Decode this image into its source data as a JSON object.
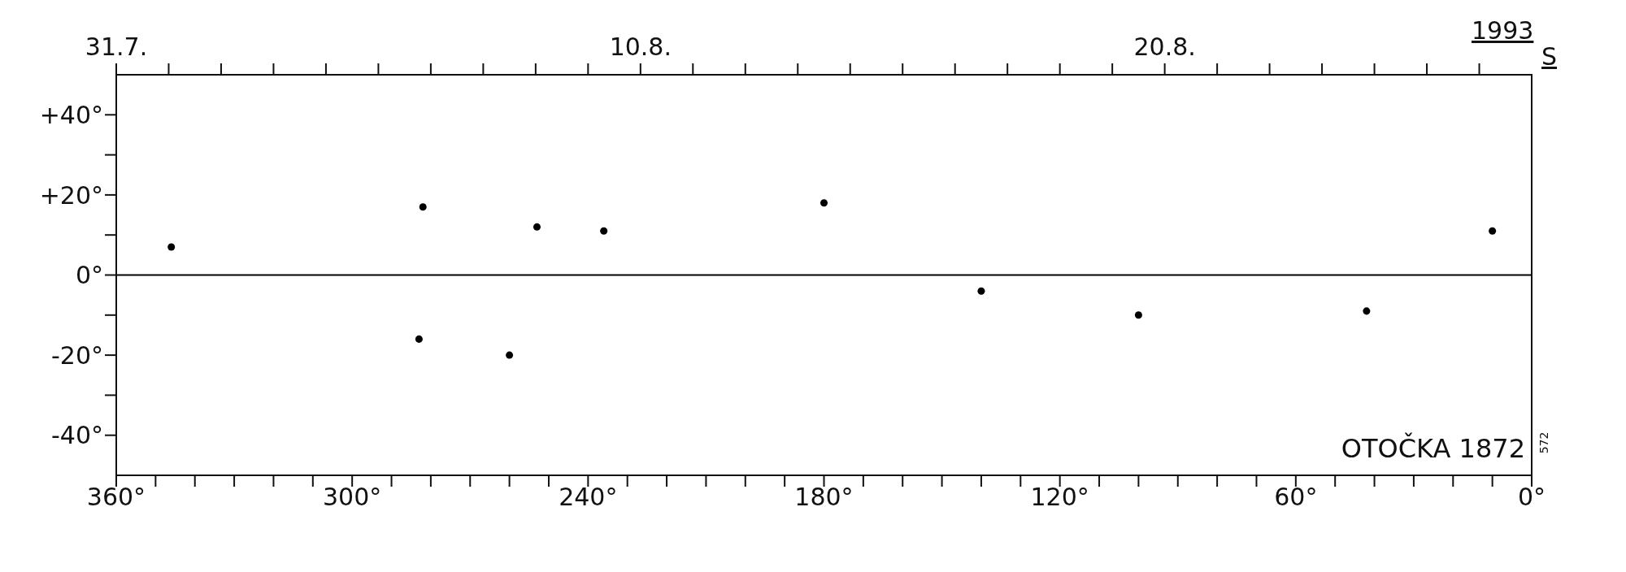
{
  "chart_data": {
    "type": "scatter",
    "x": [
      346,
      253,
      236,
      283,
      282,
      180,
      260,
      140,
      100,
      42,
      10
    ],
    "values": [
      7,
      12,
      11,
      -16,
      17,
      18,
      -20,
      -4,
      -10,
      -9,
      11
    ],
    "color": "#000000",
    "marker": "circle",
    "grid": false,
    "legend": false,
    "xlim": [
      360,
      0
    ],
    "xticks": [
      {
        "value": 360,
        "label": "360°"
      },
      {
        "value": 350,
        "label": null
      },
      {
        "value": 340,
        "label": null
      },
      {
        "value": 330,
        "label": null
      },
      {
        "value": 320,
        "label": null
      },
      {
        "value": 310,
        "label": null
      },
      {
        "value": 300,
        "label": "300°"
      },
      {
        "value": 290,
        "label": null
      },
      {
        "value": 280,
        "label": null
      },
      {
        "value": 270,
        "label": null
      },
      {
        "value": 260,
        "label": null
      },
      {
        "value": 250,
        "label": null
      },
      {
        "value": 240,
        "label": "240°"
      },
      {
        "value": 230,
        "label": null
      },
      {
        "value": 220,
        "label": null
      },
      {
        "value": 210,
        "label": null
      },
      {
        "value": 200,
        "label": null
      },
      {
        "value": 190,
        "label": null
      },
      {
        "value": 180,
        "label": "180°"
      },
      {
        "value": 170,
        "label": null
      },
      {
        "value": 160,
        "label": null
      },
      {
        "value": 150,
        "label": null
      },
      {
        "value": 140,
        "label": null
      },
      {
        "value": 130,
        "label": null
      },
      {
        "value": 120,
        "label": "120°"
      },
      {
        "value": 110,
        "label": null
      },
      {
        "value": 100,
        "label": null
      },
      {
        "value": 90,
        "label": null
      },
      {
        "value": 80,
        "label": null
      },
      {
        "value": 70,
        "label": null
      },
      {
        "value": 60,
        "label": "60°"
      },
      {
        "value": 50,
        "label": null
      },
      {
        "value": 40,
        "label": null
      },
      {
        "value": 30,
        "label": null
      },
      {
        "value": 20,
        "label": null
      },
      {
        "value": 10,
        "label": null
      },
      {
        "value": 0,
        "label": "0°"
      }
    ],
    "ylim": [
      -50,
      50
    ],
    "yticks": [
      {
        "value": -40,
        "label": "-40°"
      },
      {
        "value": -30,
        "label": null
      },
      {
        "value": -20,
        "label": "-20°"
      },
      {
        "value": -10,
        "label": null
      },
      {
        "value": 0,
        "label": "0°"
      },
      {
        "value": 10,
        "label": null
      },
      {
        "value": 20,
        "label": "+20°"
      },
      {
        "value": 30,
        "label": null
      },
      {
        "value": 40,
        "label": "+40°"
      }
    ],
    "x2lim": [
      "1993-07-31",
      "1993-08-27"
    ],
    "x2ticks": [
      {
        "value": "1993-07-31",
        "label": "31.7."
      },
      {
        "value": "1993-08-01",
        "label": null
      },
      {
        "value": "1993-08-02",
        "label": null
      },
      {
        "value": "1993-08-03",
        "label": null
      },
      {
        "value": "1993-08-04",
        "label": null
      },
      {
        "value": "1993-08-05",
        "label": null
      },
      {
        "value": "1993-08-06",
        "label": null
      },
      {
        "value": "1993-08-07",
        "label": null
      },
      {
        "value": "1993-08-08",
        "label": null
      },
      {
        "value": "1993-08-09",
        "label": null
      },
      {
        "value": "1993-08-10",
        "label": "10.8."
      },
      {
        "value": "1993-08-11",
        "label": null
      },
      {
        "value": "1993-08-12",
        "label": null
      },
      {
        "value": "1993-08-13",
        "label": null
      },
      {
        "value": "1993-08-14",
        "label": null
      },
      {
        "value": "1993-08-15",
        "label": null
      },
      {
        "value": "1993-08-16",
        "label": null
      },
      {
        "value": "1993-08-17",
        "label": null
      },
      {
        "value": "1993-08-18",
        "label": null
      },
      {
        "value": "1993-08-19",
        "label": null
      },
      {
        "value": "1993-08-20",
        "label": "20.8."
      },
      {
        "value": "1993-08-21",
        "label": null
      },
      {
        "value": "1993-08-22",
        "label": null
      },
      {
        "value": "1993-08-23",
        "label": null
      },
      {
        "value": "1993-08-24",
        "label": null
      },
      {
        "value": "1993-08-25",
        "label": null
      },
      {
        "value": "1993-08-26",
        "label": null
      }
    ],
    "ref_lines": [
      {
        "axis": "y",
        "value": 0,
        "color": "#000000"
      }
    ],
    "annotations": [
      "OTOČKA 1872",
      "1993",
      "S",
      "572"
    ]
  }
}
